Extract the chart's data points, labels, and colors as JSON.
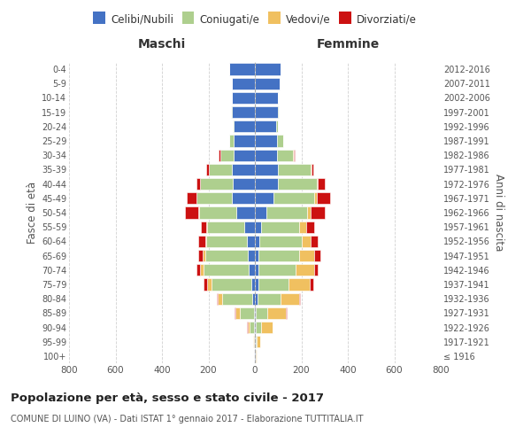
{
  "age_groups": [
    "100+",
    "95-99",
    "90-94",
    "85-89",
    "80-84",
    "75-79",
    "70-74",
    "65-69",
    "60-64",
    "55-59",
    "50-54",
    "45-49",
    "40-44",
    "35-39",
    "30-34",
    "25-29",
    "20-24",
    "15-19",
    "10-14",
    "5-9",
    "0-4"
  ],
  "birth_years": [
    "≤ 1916",
    "1917-1921",
    "1922-1926",
    "1927-1931",
    "1932-1936",
    "1937-1941",
    "1942-1946",
    "1947-1951",
    "1952-1956",
    "1957-1961",
    "1962-1966",
    "1967-1971",
    "1972-1976",
    "1977-1981",
    "1982-1986",
    "1987-1991",
    "1992-1996",
    "1997-2001",
    "2002-2006",
    "2007-2011",
    "2012-2016"
  ],
  "male": {
    "celibi": [
      2,
      2,
      4,
      5,
      10,
      15,
      25,
      30,
      35,
      45,
      80,
      100,
      95,
      100,
      90,
      90,
      90,
      100,
      100,
      100,
      110
    ],
    "coniugati": [
      1,
      3,
      20,
      60,
      130,
      170,
      195,
      185,
      175,
      160,
      160,
      150,
      140,
      100,
      60,
      20,
      5,
      2,
      0,
      0,
      0
    ],
    "vedovi": [
      0,
      2,
      8,
      20,
      20,
      20,
      15,
      10,
      5,
      3,
      2,
      2,
      1,
      0,
      0,
      0,
      0,
      0,
      0,
      0,
      0
    ],
    "divorziati": [
      0,
      0,
      1,
      2,
      5,
      15,
      15,
      20,
      30,
      25,
      60,
      40,
      15,
      10,
      5,
      2,
      0,
      0,
      0,
      0,
      0
    ]
  },
  "female": {
    "nubili": [
      2,
      2,
      5,
      5,
      10,
      15,
      15,
      15,
      20,
      25,
      50,
      80,
      100,
      100,
      95,
      95,
      90,
      100,
      100,
      105,
      110
    ],
    "coniugate": [
      2,
      5,
      20,
      50,
      100,
      130,
      160,
      175,
      180,
      165,
      175,
      175,
      165,
      140,
      70,
      25,
      8,
      2,
      0,
      0,
      0
    ],
    "vedove": [
      2,
      15,
      50,
      80,
      80,
      90,
      80,
      65,
      40,
      30,
      15,
      10,
      5,
      3,
      2,
      1,
      0,
      0,
      0,
      0,
      0
    ],
    "divorziate": [
      0,
      0,
      2,
      3,
      5,
      15,
      15,
      25,
      30,
      35,
      60,
      60,
      30,
      10,
      5,
      2,
      0,
      0,
      0,
      0,
      0
    ]
  },
  "colors": {
    "celibi": "#4472C4",
    "coniugati": "#AECF8E",
    "vedovi": "#F0C060",
    "divorziati": "#CC1111"
  },
  "legend_labels": [
    "Celibi/Nubili",
    "Coniugati/e",
    "Vedovi/e",
    "Divorziati/e"
  ],
  "xlim": 800,
  "title": "Popolazione per età, sesso e stato civile - 2017",
  "subtitle": "COMUNE DI LUINO (VA) - Dati ISTAT 1° gennaio 2017 - Elaborazione TUTTITALIA.IT",
  "ylabel_left": "Fasce di età",
  "ylabel_right": "Anni di nascita",
  "xlabel_left": "Maschi",
  "xlabel_right": "Femmine",
  "background_color": "#ffffff",
  "grid_color": "#cccccc"
}
